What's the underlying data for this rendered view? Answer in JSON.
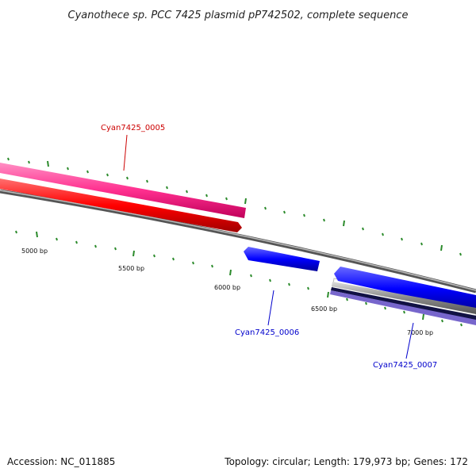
{
  "title": "Cyanothece sp. PCC 7425 plasmid pP742502, complete sequence",
  "ticks": [
    {
      "label": "5000 bp"
    },
    {
      "label": "5500 bp"
    },
    {
      "label": "6000 bp"
    },
    {
      "label": "6500 bp"
    },
    {
      "label": "7000 bp"
    }
  ],
  "genes": [
    {
      "label": "Cyan7425_0005",
      "color": "#cc0000"
    },
    {
      "label": "Cyan7425_0006",
      "color": "#0000cc"
    },
    {
      "label": "Cyan7425_0007",
      "color": "#0000cc"
    }
  ],
  "footer": {
    "accession": "Accession: NC_011885",
    "summary": "Topology: circular; Length: 179,973 bp; Genes: 172"
  },
  "colors": {
    "pink_feature": "#ff2f8f",
    "red_feature": "#ff0000",
    "blue_feature": "#0000ff",
    "purple_feature": "#7766cc",
    "backbone": "#8a8a8a",
    "tick": "#2a8a2a"
  }
}
